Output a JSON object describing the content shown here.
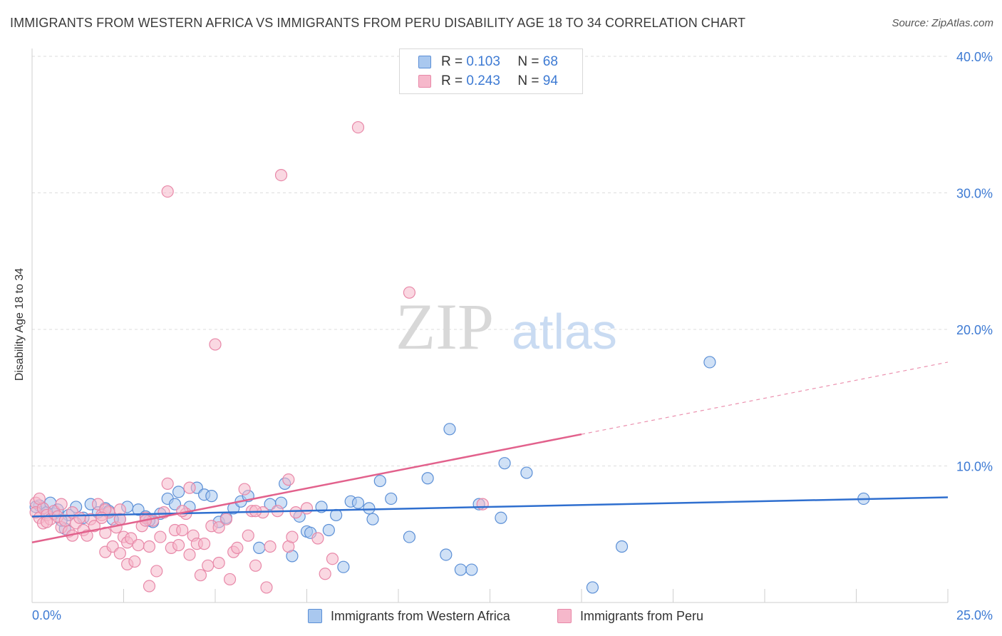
{
  "title": "IMMIGRANTS FROM WESTERN AFRICA VS IMMIGRANTS FROM PERU DISABILITY AGE 18 TO 34 CORRELATION CHART",
  "source": "Source: ZipAtlas.com",
  "watermark": {
    "zip": "ZIP",
    "atlas": "atlas"
  },
  "legend": {
    "rows": [
      {
        "r_label": "R =",
        "r_value": "0.103",
        "n_label": "N =",
        "n_value": "68"
      },
      {
        "r_label": "R =",
        "r_value": "0.243",
        "n_label": "N =",
        "n_value": "94"
      }
    ]
  },
  "colors": {
    "blue_fill": "#a9c8ef",
    "blue_stroke": "#5b8fd6",
    "blue_line": "#2f6fcf",
    "pink_fill": "#f6b8cb",
    "pink_stroke": "#e888a8",
    "pink_line": "#e2618c",
    "tick_label": "#3d7ad3",
    "grid": "#dddddd"
  },
  "chart_data": {
    "type": "scatter",
    "title": "IMMIGRANTS FROM WESTERN AFRICA VS IMMIGRANTS FROM PERU DISABILITY AGE 18 TO 34 CORRELATION CHART",
    "xlabel": "",
    "ylabel": "Disability Age 18 to 34",
    "xlim": [
      0,
      25
    ],
    "ylim": [
      0,
      40
    ],
    "x_tick_labels": [
      "0.0%",
      "25.0%"
    ],
    "y_ticks": [
      10,
      20,
      30,
      40
    ],
    "y_tick_labels": [
      "10.0%",
      "20.0%",
      "30.0%",
      "40.0%"
    ],
    "grid": true,
    "legend_position": "top-center",
    "series": [
      {
        "name": "Immigrants from Western Africa",
        "R": 0.103,
        "N": 68,
        "trend": {
          "x": [
            0,
            25
          ],
          "y": [
            6.3,
            7.7
          ],
          "solid_until": 25
        },
        "points": [
          [
            0.2,
            7.1
          ],
          [
            0.3,
            6.9
          ],
          [
            0.4,
            6.6
          ],
          [
            0.5,
            7.3
          ],
          [
            0.6,
            6.5
          ],
          [
            0.7,
            6.8
          ],
          [
            0.9,
            5.4
          ],
          [
            1.0,
            6.4
          ],
          [
            1.2,
            7.0
          ],
          [
            1.4,
            6.2
          ],
          [
            1.6,
            7.2
          ],
          [
            1.8,
            6.6
          ],
          [
            2.0,
            6.9
          ],
          [
            2.1,
            6.7
          ],
          [
            2.4,
            6.1
          ],
          [
            2.6,
            7.0
          ],
          [
            2.9,
            6.8
          ],
          [
            3.1,
            6.3
          ],
          [
            3.3,
            5.9
          ],
          [
            3.5,
            6.5
          ],
          [
            3.7,
            7.6
          ],
          [
            3.9,
            7.2
          ],
          [
            4.0,
            8.1
          ],
          [
            4.3,
            7.0
          ],
          [
            4.5,
            8.4
          ],
          [
            4.7,
            7.9
          ],
          [
            4.9,
            7.8
          ],
          [
            5.1,
            5.9
          ],
          [
            5.3,
            6.2
          ],
          [
            5.5,
            6.9
          ],
          [
            5.7,
            7.4
          ],
          [
            5.9,
            7.8
          ],
          [
            6.2,
            4.0
          ],
          [
            6.5,
            7.2
          ],
          [
            6.8,
            7.3
          ],
          [
            6.9,
            8.7
          ],
          [
            7.1,
            3.4
          ],
          [
            7.3,
            6.3
          ],
          [
            7.5,
            5.2
          ],
          [
            7.6,
            5.1
          ],
          [
            7.9,
            7.0
          ],
          [
            8.1,
            5.3
          ],
          [
            8.3,
            6.4
          ],
          [
            8.5,
            2.6
          ],
          [
            8.7,
            7.4
          ],
          [
            8.9,
            7.3
          ],
          [
            9.2,
            6.9
          ],
          [
            9.3,
            6.1
          ],
          [
            9.5,
            8.9
          ],
          [
            9.8,
            7.6
          ],
          [
            10.3,
            4.8
          ],
          [
            10.8,
            9.1
          ],
          [
            11.3,
            3.5
          ],
          [
            11.4,
            12.7
          ],
          [
            11.7,
            2.4
          ],
          [
            12.0,
            2.4
          ],
          [
            12.2,
            7.2
          ],
          [
            12.8,
            6.2
          ],
          [
            12.9,
            10.2
          ],
          [
            13.5,
            9.5
          ],
          [
            15.3,
            1.1
          ],
          [
            16.1,
            4.1
          ],
          [
            18.5,
            17.6
          ],
          [
            22.7,
            7.6
          ],
          [
            0.1,
            7.0
          ],
          [
            0.8,
            6.0
          ],
          [
            2.2,
            6.1
          ],
          [
            3.2,
            6.0
          ]
        ]
      },
      {
        "name": "Immigrants from Peru",
        "R": 0.243,
        "N": 94,
        "trend": {
          "x": [
            0,
            25
          ],
          "y": [
            4.4,
            17.6
          ],
          "solid_until": 15
        },
        "points": [
          [
            0.1,
            7.3
          ],
          [
            0.1,
            6.6
          ],
          [
            0.2,
            6.2
          ],
          [
            0.3,
            6.9
          ],
          [
            0.3,
            5.8
          ],
          [
            0.4,
            6.4
          ],
          [
            0.5,
            6.1
          ],
          [
            0.6,
            6.7
          ],
          [
            0.7,
            6.3
          ],
          [
            0.8,
            5.5
          ],
          [
            0.8,
            7.2
          ],
          [
            0.9,
            6.0
          ],
          [
            1.0,
            5.2
          ],
          [
            1.1,
            6.6
          ],
          [
            1.2,
            5.8
          ],
          [
            1.3,
            6.2
          ],
          [
            1.4,
            5.3
          ],
          [
            1.5,
            4.9
          ],
          [
            1.6,
            6.1
          ],
          [
            1.7,
            5.6
          ],
          [
            1.8,
            7.2
          ],
          [
            1.9,
            6.4
          ],
          [
            2.0,
            5.1
          ],
          [
            2.0,
            3.7
          ],
          [
            2.1,
            6.6
          ],
          [
            2.2,
            4.1
          ],
          [
            2.3,
            5.5
          ],
          [
            2.4,
            3.6
          ],
          [
            2.4,
            6.8
          ],
          [
            2.5,
            4.8
          ],
          [
            2.6,
            4.4
          ],
          [
            2.6,
            2.8
          ],
          [
            2.7,
            4.7
          ],
          [
            2.8,
            3.0
          ],
          [
            2.9,
            4.2
          ],
          [
            3.0,
            5.6
          ],
          [
            3.1,
            6.2
          ],
          [
            3.2,
            1.2
          ],
          [
            3.2,
            4.1
          ],
          [
            3.3,
            6.0
          ],
          [
            3.4,
            2.3
          ],
          [
            3.5,
            4.8
          ],
          [
            3.6,
            6.6
          ],
          [
            3.7,
            8.7
          ],
          [
            3.7,
            30.1
          ],
          [
            3.8,
            4.0
          ],
          [
            3.9,
            5.3
          ],
          [
            4.0,
            4.2
          ],
          [
            4.1,
            5.3
          ],
          [
            4.2,
            6.5
          ],
          [
            4.3,
            3.5
          ],
          [
            4.3,
            8.4
          ],
          [
            4.4,
            4.9
          ],
          [
            4.5,
            4.3
          ],
          [
            4.6,
            2.0
          ],
          [
            4.7,
            4.3
          ],
          [
            4.8,
            2.7
          ],
          [
            4.9,
            5.6
          ],
          [
            5.0,
            18.9
          ],
          [
            5.1,
            2.9
          ],
          [
            5.3,
            6.1
          ],
          [
            5.4,
            1.7
          ],
          [
            5.5,
            3.7
          ],
          [
            5.6,
            4.0
          ],
          [
            5.8,
            8.3
          ],
          [
            5.9,
            4.9
          ],
          [
            6.0,
            6.7
          ],
          [
            6.1,
            2.7
          ],
          [
            6.3,
            6.6
          ],
          [
            6.4,
            1.1
          ],
          [
            6.5,
            4.1
          ],
          [
            6.7,
            6.7
          ],
          [
            6.8,
            31.3
          ],
          [
            7.0,
            4.1
          ],
          [
            7.0,
            9.0
          ],
          [
            7.1,
            4.8
          ],
          [
            7.2,
            6.6
          ],
          [
            7.5,
            6.9
          ],
          [
            7.8,
            4.7
          ],
          [
            8.0,
            2.1
          ],
          [
            8.2,
            3.2
          ],
          [
            8.9,
            34.8
          ],
          [
            10.3,
            22.7
          ],
          [
            12.3,
            7.2
          ],
          [
            0.4,
            5.9
          ],
          [
            1.1,
            4.9
          ],
          [
            2.0,
            6.8
          ],
          [
            3.1,
            6.0
          ],
          [
            4.1,
            6.7
          ],
          [
            0.2,
            7.6
          ],
          [
            1.9,
            6.2
          ],
          [
            5.1,
            5.5
          ],
          [
            6.1,
            6.7
          ],
          [
            2.4,
            6.1
          ]
        ]
      }
    ]
  },
  "bottom_legend": {
    "series_a": "Immigrants from Western Africa",
    "series_b": "Immigrants from Peru"
  }
}
